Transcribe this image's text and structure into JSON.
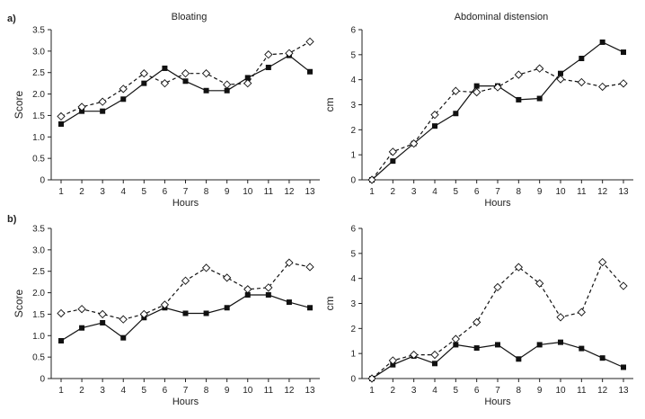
{
  "chart_data": [
    {
      "type": "line",
      "panel_label": "a)",
      "title": "Bloating",
      "xlabel": "Hours",
      "ylabel": "Score",
      "x": [
        1,
        2,
        3,
        4,
        5,
        6,
        7,
        8,
        9,
        10,
        11,
        12,
        13
      ],
      "ylim": [
        0,
        3.5
      ],
      "yticks": [
        0,
        0.5,
        1.0,
        1.5,
        2.0,
        2.5,
        3.0,
        3.5
      ],
      "ytick_labels": [
        "0",
        "0.5",
        "1.0",
        "1.5",
        "2.0",
        "2.5",
        "3.0",
        "3.5"
      ],
      "series": [
        {
          "style": "solid",
          "marker": "filled-square",
          "color": "#111111",
          "values": [
            1.3,
            1.6,
            1.6,
            1.88,
            2.25,
            2.6,
            2.3,
            2.08,
            2.08,
            2.38,
            2.62,
            2.9,
            2.52
          ]
        },
        {
          "style": "dashed",
          "marker": "open-diamond",
          "color": "#111111",
          "values": [
            1.48,
            1.7,
            1.82,
            2.12,
            2.48,
            2.25,
            2.48,
            2.48,
            2.22,
            2.25,
            2.92,
            2.95,
            3.22
          ]
        }
      ]
    },
    {
      "type": "line",
      "panel_label": "",
      "title": "Abdominal distension",
      "xlabel": "Hours",
      "ylabel": "cm",
      "x": [
        1,
        2,
        3,
        4,
        5,
        6,
        7,
        8,
        9,
        10,
        11,
        12,
        13
      ],
      "ylim": [
        0,
        6
      ],
      "yticks": [
        0,
        1,
        2,
        3,
        4,
        5,
        6
      ],
      "ytick_labels": [
        "0",
        "1",
        "2",
        "3",
        "4",
        "5",
        "6"
      ],
      "series": [
        {
          "style": "solid",
          "marker": "filled-square",
          "color": "#111111",
          "values": [
            0,
            0.75,
            1.45,
            2.15,
            2.65,
            3.75,
            3.75,
            3.2,
            3.25,
            4.25,
            4.85,
            5.5,
            5.1
          ]
        },
        {
          "style": "dashed",
          "marker": "open-diamond",
          "color": "#111111",
          "values": [
            0,
            1.12,
            1.45,
            2.6,
            3.55,
            3.5,
            3.7,
            4.2,
            4.45,
            4.02,
            3.9,
            3.72,
            3.85
          ]
        }
      ]
    },
    {
      "type": "line",
      "panel_label": "b)",
      "title": "",
      "xlabel": "Hours",
      "ylabel": "Score",
      "x": [
        1,
        2,
        3,
        4,
        5,
        6,
        7,
        8,
        9,
        10,
        11,
        12,
        13
      ],
      "ylim": [
        0,
        3.5
      ],
      "yticks": [
        0,
        0.5,
        1.0,
        1.5,
        2.0,
        2.5,
        3.0,
        3.5
      ],
      "ytick_labels": [
        "0",
        "0.5",
        "1.0",
        "1.5",
        "2.0",
        "2.5",
        "3.0",
        "3.5"
      ],
      "series": [
        {
          "style": "solid",
          "marker": "filled-square",
          "color": "#111111",
          "values": [
            0.88,
            1.18,
            1.3,
            0.95,
            1.42,
            1.65,
            1.52,
            1.52,
            1.65,
            1.95,
            1.95,
            1.78,
            1.65
          ]
        },
        {
          "style": "dashed",
          "marker": "open-diamond",
          "color": "#111111",
          "values": [
            1.52,
            1.62,
            1.5,
            1.38,
            1.5,
            1.72,
            2.28,
            2.58,
            2.35,
            2.08,
            2.12,
            2.7,
            2.6
          ]
        }
      ]
    },
    {
      "type": "line",
      "panel_label": "",
      "title": "",
      "xlabel": "Hours",
      "ylabel": "cm",
      "x": [
        1,
        2,
        3,
        4,
        5,
        6,
        7,
        8,
        9,
        10,
        11,
        12,
        13
      ],
      "ylim": [
        0,
        6
      ],
      "yticks": [
        0,
        1,
        2,
        3,
        4,
        5,
        6
      ],
      "ytick_labels": [
        "0",
        "1",
        "2",
        "3",
        "4",
        "5",
        "6"
      ],
      "series": [
        {
          "style": "solid",
          "marker": "filled-square",
          "color": "#111111",
          "values": [
            0,
            0.55,
            0.9,
            0.6,
            1.35,
            1.22,
            1.35,
            0.78,
            1.35,
            1.45,
            1.2,
            0.82,
            0.45
          ]
        },
        {
          "style": "dashed",
          "marker": "open-diamond",
          "color": "#111111",
          "values": [
            0,
            0.72,
            0.95,
            0.95,
            1.58,
            2.25,
            3.65,
            4.45,
            3.8,
            2.45,
            2.65,
            4.65,
            3.7
          ]
        }
      ]
    }
  ]
}
